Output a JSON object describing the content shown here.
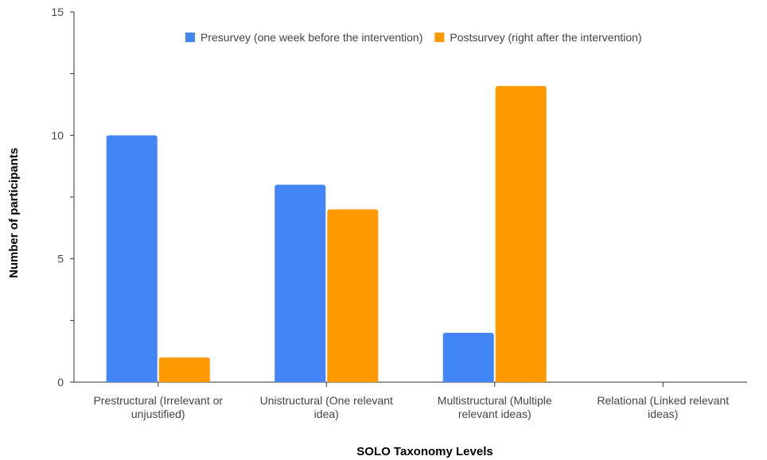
{
  "chart_data": {
    "type": "bar",
    "title": "",
    "xlabel": "SOLO Taxonomy Levels",
    "ylabel": "Number of participants",
    "ylim": [
      0,
      15
    ],
    "yticks": [
      0,
      5,
      10,
      15
    ],
    "grid": false,
    "legend_position": "top",
    "categories": [
      "Prestructural (Irrelevant or unjustified)",
      "Unistructural (One relevant idea)",
      "Multistructural (Multiple relevant ideas)",
      "Relational (Linked relevant ideas)"
    ],
    "category_lines": [
      [
        "Prestructural (Irrelevant or",
        "unjustified)"
      ],
      [
        "Unistructural (One relevant",
        "idea)"
      ],
      [
        "Multistructural (Multiple",
        "relevant ideas)"
      ],
      [
        "Relational (Linked relevant",
        "ideas)"
      ]
    ],
    "series": [
      {
        "name": "Presurvey (one week before the intervention)",
        "values": [
          10,
          8,
          2,
          0
        ],
        "color": "#4285f4"
      },
      {
        "name": "Postsurvey (right after the intervention)",
        "values": [
          1,
          7,
          12,
          0
        ],
        "color": "#ff9900"
      }
    ]
  }
}
